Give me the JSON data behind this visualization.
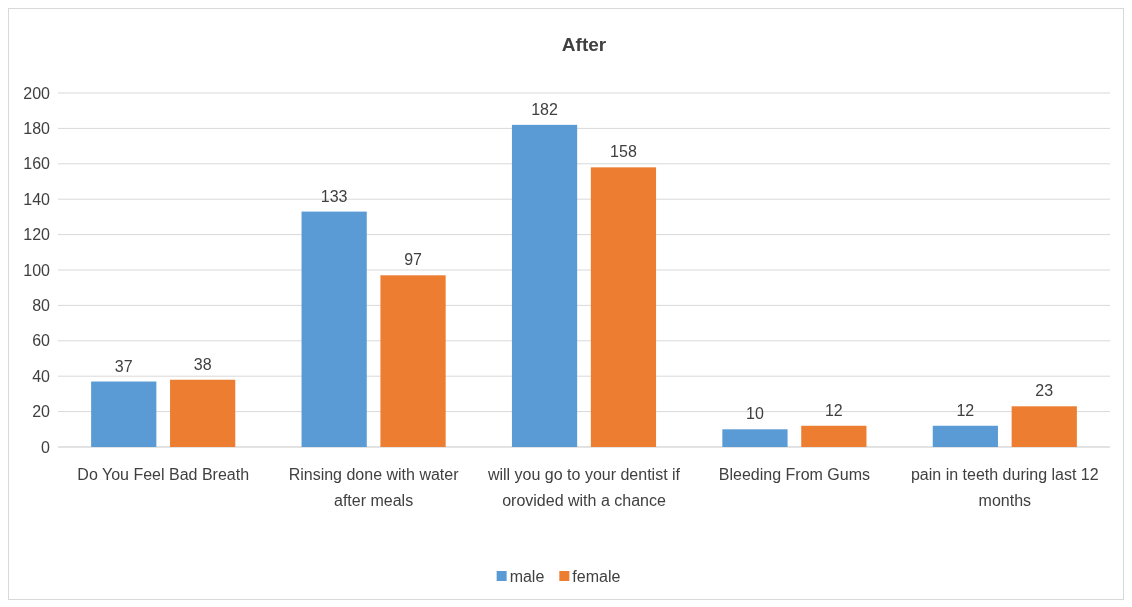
{
  "chart_data": {
    "type": "bar",
    "title": "After",
    "categories": [
      "Do You Feel Bad Breath",
      "Rinsing done with water after meals",
      "will you go to your dentist if orovided with a chance",
      "Bleeding From Gums",
      "pain in teeth during last 12 months"
    ],
    "series": [
      {
        "name": "male",
        "color": "#5b9bd5",
        "values": [
          37,
          133,
          182,
          10,
          12
        ]
      },
      {
        "name": "female",
        "color": "#ed7d31",
        "values": [
          38,
          97,
          158,
          12,
          23
        ]
      }
    ],
    "ylim": [
      0,
      200
    ],
    "yticks": [
      0,
      20,
      40,
      60,
      80,
      100,
      120,
      140,
      160,
      180,
      200
    ],
    "grid": "y",
    "legend": "bottom",
    "data_labels": true
  }
}
